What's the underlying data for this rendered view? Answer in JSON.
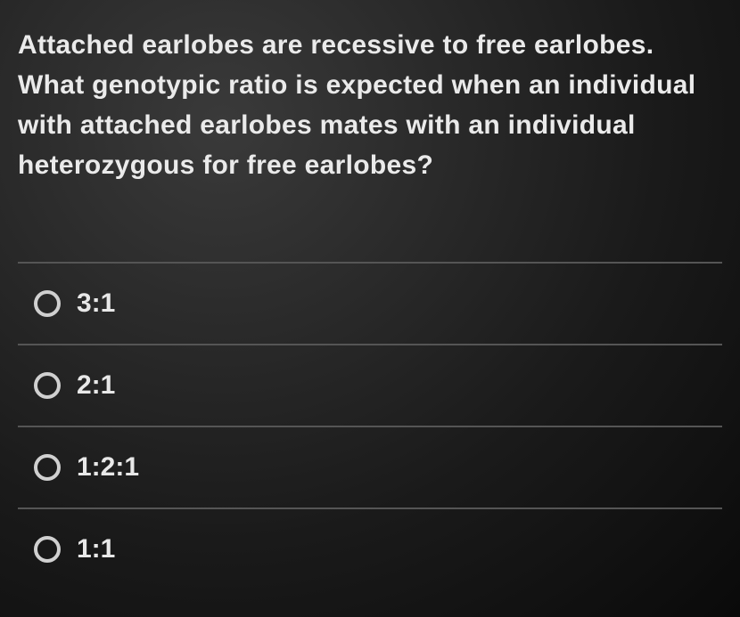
{
  "background_gradient": {
    "from": "#3a3a3a",
    "to": "#0a0a0a"
  },
  "text_color": "#e8e8e8",
  "divider_color": "#555555",
  "radio_border_color": "#d0d0d0",
  "question": {
    "text": "Attached earlobes are recessive to free earlobes. What genotypic ratio is expected when an individual with attached earlobes mates with an individual heterozygous for free earlobes?",
    "fontsize": 30,
    "fontweight": 600
  },
  "options": [
    {
      "label": "3:1",
      "selected": false
    },
    {
      "label": "2:1",
      "selected": false
    },
    {
      "label": "1:2:1",
      "selected": false
    },
    {
      "label": "1:1",
      "selected": false
    }
  ],
  "option_style": {
    "fontsize": 30,
    "fontweight": 700,
    "radio_size": 30,
    "radio_border_width": 4
  }
}
